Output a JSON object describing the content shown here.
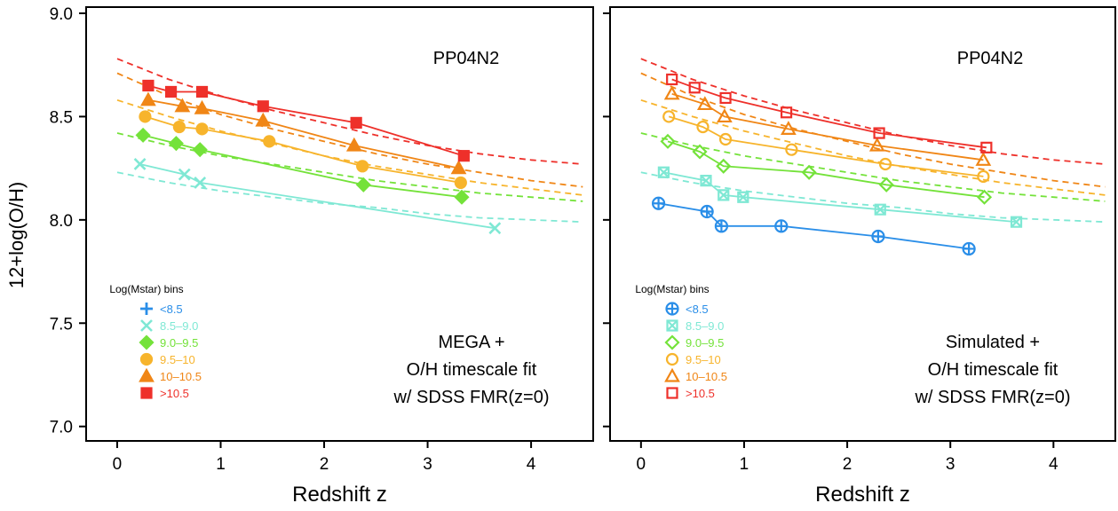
{
  "ylabel": "12+log(O/H)",
  "chart_data": [
    {
      "type": "scatter",
      "panel": "left",
      "method_label": "PP04N2",
      "annotation": [
        "MEGA +",
        "O/H timescale fit",
        "w/ SDSS FMR(z=0)"
      ],
      "xlabel": "Redshift z",
      "ylabel": "12+log(O/H)",
      "xlim": [
        -0.3,
        4.6
      ],
      "ylim": [
        6.93,
        9.03
      ],
      "xticks": [
        "0",
        "1",
        "2",
        "3",
        "4"
      ],
      "yticks": [
        "7.0",
        "7.5",
        "8.0",
        "8.5",
        "9.0"
      ],
      "grid": false,
      "legend_title": "Log(Mstar) bins",
      "legend_position": "bottom-left",
      "series": [
        {
          "name": "<8.5",
          "color": "#2a8ee8",
          "marker": "plus",
          "filled": true,
          "points": []
        },
        {
          "name": "8.5–9.0",
          "color": "#7fe8d4",
          "marker": "x",
          "filled": true,
          "points": [
            [
              0.22,
              8.27
            ],
            [
              0.65,
              8.22
            ],
            [
              0.8,
              8.18
            ],
            [
              3.65,
              7.96
            ]
          ]
        },
        {
          "name": "9.0–9.5",
          "color": "#74e23a",
          "marker": "diamond",
          "filled": true,
          "points": [
            [
              0.25,
              8.41
            ],
            [
              0.57,
              8.37
            ],
            [
              0.8,
              8.34
            ],
            [
              2.38,
              8.17
            ],
            [
              3.33,
              8.11
            ]
          ]
        },
        {
          "name": "9.5–10",
          "color": "#f7b42c",
          "marker": "circle",
          "filled": true,
          "points": [
            [
              0.27,
              8.5
            ],
            [
              0.6,
              8.45
            ],
            [
              0.82,
              8.44
            ],
            [
              1.47,
              8.38
            ],
            [
              2.37,
              8.26
            ],
            [
              3.32,
              8.18
            ]
          ]
        },
        {
          "name": "10–10.5",
          "color": "#f08616",
          "marker": "triangle",
          "filled": true,
          "points": [
            [
              0.3,
              8.58
            ],
            [
              0.63,
              8.55
            ],
            [
              0.82,
              8.54
            ],
            [
              1.41,
              8.48
            ],
            [
              2.29,
              8.36
            ],
            [
              3.3,
              8.25
            ]
          ]
        },
        {
          "name": ">10.5",
          "color": "#ee302a",
          "marker": "square",
          "filled": true,
          "points": [
            [
              0.3,
              8.65
            ],
            [
              0.52,
              8.62
            ],
            [
              0.82,
              8.62
            ],
            [
              1.41,
              8.55
            ],
            [
              2.31,
              8.47
            ],
            [
              3.35,
              8.31
            ]
          ]
        }
      ],
      "fit_curves": [
        {
          "series": "8.5–9.0",
          "color": "#7fe8d4",
          "points": [
            [
              0,
              8.23
            ],
            [
              0.5,
              8.18
            ],
            [
              1,
              8.14
            ],
            [
              1.5,
              8.11
            ],
            [
              2,
              8.08
            ],
            [
              2.5,
              8.06
            ],
            [
              3,
              8.03
            ],
            [
              3.5,
              8.01
            ],
            [
              4,
              8.0
            ],
            [
              4.5,
              7.99
            ]
          ]
        },
        {
          "series": "9.0–9.5",
          "color": "#74e23a",
          "points": [
            [
              0,
              8.42
            ],
            [
              0.5,
              8.36
            ],
            [
              1,
              8.31
            ],
            [
              1.5,
              8.27
            ],
            [
              2,
              8.23
            ],
            [
              2.5,
              8.19
            ],
            [
              3,
              8.16
            ],
            [
              3.5,
              8.13
            ],
            [
              4,
              8.11
            ],
            [
              4.5,
              8.09
            ]
          ]
        },
        {
          "series": "9.5–10",
          "color": "#f7b42c",
          "points": [
            [
              0,
              8.58
            ],
            [
              0.5,
              8.5
            ],
            [
              1,
              8.43
            ],
            [
              1.5,
              8.37
            ],
            [
              2,
              8.31
            ],
            [
              2.5,
              8.26
            ],
            [
              3,
              8.22
            ],
            [
              3.5,
              8.18
            ],
            [
              4,
              8.15
            ],
            [
              4.5,
              8.12
            ]
          ]
        },
        {
          "series": "10–10.5",
          "color": "#f08616",
          "points": [
            [
              0,
              8.71
            ],
            [
              0.5,
              8.6
            ],
            [
              1,
              8.51
            ],
            [
              1.5,
              8.44
            ],
            [
              2,
              8.38
            ],
            [
              2.5,
              8.32
            ],
            [
              3,
              8.27
            ],
            [
              3.5,
              8.23
            ],
            [
              4,
              8.19
            ],
            [
              4.5,
              8.16
            ]
          ]
        },
        {
          "series": ">10.5",
          "color": "#ee302a",
          "points": [
            [
              0,
              8.78
            ],
            [
              0.5,
              8.68
            ],
            [
              1,
              8.6
            ],
            [
              1.5,
              8.53
            ],
            [
              2,
              8.47
            ],
            [
              2.5,
              8.41
            ],
            [
              3,
              8.36
            ],
            [
              3.5,
              8.32
            ],
            [
              4,
              8.29
            ],
            [
              4.5,
              8.27
            ]
          ]
        }
      ]
    },
    {
      "type": "scatter",
      "panel": "right",
      "method_label": "PP04N2",
      "annotation": [
        "Simulated +",
        "O/H timescale fit",
        "w/ SDSS FMR(z=0)"
      ],
      "xlabel": "Redshift z",
      "ylabel": "",
      "xlim": [
        -0.3,
        4.6
      ],
      "ylim": [
        6.93,
        9.03
      ],
      "xticks": [
        "0",
        "1",
        "2",
        "3",
        "4"
      ],
      "yticks": [],
      "grid": false,
      "legend_title": "Log(Mstar) bins",
      "legend_position": "bottom-left",
      "series": [
        {
          "name": "<8.5",
          "color": "#2a8ee8",
          "marker": "circle-plus",
          "filled": false,
          "points": [
            [
              0.17,
              8.08
            ],
            [
              0.64,
              8.04
            ],
            [
              0.78,
              7.97
            ],
            [
              1.36,
              7.97
            ],
            [
              2.3,
              7.92
            ],
            [
              3.18,
              7.86
            ]
          ]
        },
        {
          "name": "8.5–9.0",
          "color": "#7fe8d4",
          "marker": "square-x",
          "filled": false,
          "points": [
            [
              0.22,
              8.23
            ],
            [
              0.63,
              8.19
            ],
            [
              0.8,
              8.12
            ],
            [
              0.99,
              8.11
            ],
            [
              2.32,
              8.05
            ],
            [
              3.64,
              7.99
            ]
          ]
        },
        {
          "name": "9.0–9.5",
          "color": "#74e23a",
          "marker": "diamond",
          "filled": false,
          "points": [
            [
              0.26,
              8.38
            ],
            [
              0.57,
              8.33
            ],
            [
              0.8,
              8.26
            ],
            [
              1.63,
              8.23
            ],
            [
              2.38,
              8.17
            ],
            [
              3.33,
              8.11
            ]
          ]
        },
        {
          "name": "9.5–10",
          "color": "#f7b42c",
          "marker": "circle",
          "filled": false,
          "points": [
            [
              0.27,
              8.5
            ],
            [
              0.6,
              8.45
            ],
            [
              0.82,
              8.39
            ],
            [
              1.46,
              8.34
            ],
            [
              2.37,
              8.27
            ],
            [
              3.32,
              8.21
            ]
          ]
        },
        {
          "name": "10–10.5",
          "color": "#f08616",
          "marker": "triangle",
          "filled": false,
          "points": [
            [
              0.3,
              8.61
            ],
            [
              0.62,
              8.56
            ],
            [
              0.81,
              8.5
            ],
            [
              1.43,
              8.44
            ],
            [
              2.29,
              8.36
            ],
            [
              3.32,
              8.29
            ]
          ]
        },
        {
          "name": ">10.5",
          "color": "#ee302a",
          "marker": "square",
          "filled": false,
          "points": [
            [
              0.3,
              8.68
            ],
            [
              0.52,
              8.64
            ],
            [
              0.82,
              8.59
            ],
            [
              1.41,
              8.52
            ],
            [
              2.31,
              8.42
            ],
            [
              3.35,
              8.35
            ]
          ]
        }
      ],
      "fit_curves": [
        {
          "series": "8.5–9.0",
          "color": "#7fe8d4",
          "points": [
            [
              0,
              8.23
            ],
            [
              0.5,
              8.18
            ],
            [
              1,
              8.14
            ],
            [
              1.5,
              8.11
            ],
            [
              2,
              8.08
            ],
            [
              2.5,
              8.06
            ],
            [
              3,
              8.03
            ],
            [
              3.5,
              8.01
            ],
            [
              4,
              8.0
            ],
            [
              4.5,
              7.99
            ]
          ]
        },
        {
          "series": "9.0–9.5",
          "color": "#74e23a",
          "points": [
            [
              0,
              8.42
            ],
            [
              0.5,
              8.36
            ],
            [
              1,
              8.31
            ],
            [
              1.5,
              8.27
            ],
            [
              2,
              8.23
            ],
            [
              2.5,
              8.19
            ],
            [
              3,
              8.16
            ],
            [
              3.5,
              8.13
            ],
            [
              4,
              8.11
            ],
            [
              4.5,
              8.09
            ]
          ]
        },
        {
          "series": "9.5–10",
          "color": "#f7b42c",
          "points": [
            [
              0,
              8.58
            ],
            [
              0.5,
              8.5
            ],
            [
              1,
              8.43
            ],
            [
              1.5,
              8.37
            ],
            [
              2,
              8.31
            ],
            [
              2.5,
              8.26
            ],
            [
              3,
              8.22
            ],
            [
              3.5,
              8.18
            ],
            [
              4,
              8.15
            ],
            [
              4.5,
              8.12
            ]
          ]
        },
        {
          "series": "10–10.5",
          "color": "#f08616",
          "points": [
            [
              0,
              8.71
            ],
            [
              0.5,
              8.6
            ],
            [
              1,
              8.51
            ],
            [
              1.5,
              8.44
            ],
            [
              2,
              8.38
            ],
            [
              2.5,
              8.32
            ],
            [
              3,
              8.27
            ],
            [
              3.5,
              8.23
            ],
            [
              4,
              8.19
            ],
            [
              4.5,
              8.16
            ]
          ]
        },
        {
          "series": ">10.5",
          "color": "#ee302a",
          "points": [
            [
              0,
              8.78
            ],
            [
              0.5,
              8.68
            ],
            [
              1,
              8.6
            ],
            [
              1.5,
              8.53
            ],
            [
              2,
              8.47
            ],
            [
              2.5,
              8.41
            ],
            [
              3,
              8.36
            ],
            [
              3.5,
              8.32
            ],
            [
              4,
              8.29
            ],
            [
              4.5,
              8.27
            ]
          ]
        }
      ]
    }
  ]
}
